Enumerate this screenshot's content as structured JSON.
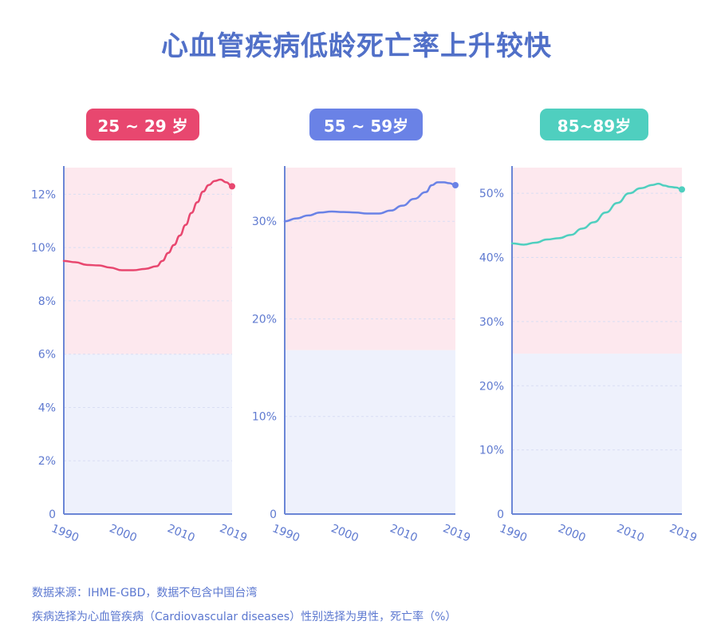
{
  "title": "心血管疾病低龄死亡率上升较快",
  "footer": {
    "line1": "数据来源：IHME-GBD，数据不包含中国台湾",
    "line2": "疾病选择为心血管疾病（Cardiovascular diseases）性别选择为男性，死亡率（%）"
  },
  "colors": {
    "title": "#5170c8",
    "axis": "#6b86d6",
    "highlight_band": "#fde8ee",
    "lower_band": "#eef1fc"
  },
  "chart_data": [
    {
      "type": "line",
      "label": "25 ~ 29 岁",
      "color": "#e8476f",
      "x_ticks": [
        "1990",
        "2000",
        "2010",
        "2019"
      ],
      "y_ticks": [
        "0",
        "2%",
        "4%",
        "6%",
        "8%",
        "10%",
        "12%"
      ],
      "ylim": [
        0,
        13
      ],
      "band_from": 6,
      "series": [
        {
          "x": [
            1990,
            1992,
            1994,
            1996,
            1998,
            2000,
            2002,
            2004,
            2006,
            2007,
            2008,
            2009,
            2010,
            2011,
            2012,
            2013,
            2014,
            2015,
            2016,
            2017,
            2018,
            2019
          ],
          "y": [
            9.5,
            9.45,
            9.35,
            9.33,
            9.25,
            9.15,
            9.15,
            9.2,
            9.3,
            9.5,
            9.8,
            10.1,
            10.45,
            10.85,
            11.3,
            11.7,
            12.1,
            12.35,
            12.5,
            12.55,
            12.45,
            12.3
          ]
        }
      ]
    },
    {
      "type": "line",
      "label": "55 ~ 59岁",
      "color": "#6a82e6",
      "x_ticks": [
        "1990",
        "2000",
        "2010",
        "2019"
      ],
      "y_ticks": [
        "0",
        "10%",
        "20%",
        "30%"
      ],
      "ylim": [
        0,
        35.5
      ],
      "band_from": 16.8,
      "series": [
        {
          "x": [
            1990,
            1992,
            1994,
            1996,
            1998,
            2000,
            2002,
            2004,
            2006,
            2008,
            2010,
            2012,
            2014,
            2015,
            2016,
            2017,
            2018,
            2019
          ],
          "y": [
            30.0,
            30.3,
            30.6,
            30.9,
            31.0,
            30.95,
            30.9,
            30.8,
            30.8,
            31.1,
            31.6,
            32.3,
            33.0,
            33.7,
            34.0,
            34.0,
            33.9,
            33.7
          ]
        }
      ]
    },
    {
      "type": "line",
      "label": "85~89岁",
      "color": "#4fcfbf",
      "x_ticks": [
        "1990",
        "2000",
        "2010",
        "2019"
      ],
      "y_ticks": [
        "0",
        "10%",
        "20%",
        "30%",
        "40%",
        "50%"
      ],
      "ylim": [
        0,
        54
      ],
      "band_from": 25,
      "series": [
        {
          "x": [
            1990,
            1992,
            1994,
            1996,
            1998,
            2000,
            2002,
            2004,
            2006,
            2008,
            2010,
            2012,
            2014,
            2015,
            2016,
            2017,
            2018,
            2019
          ],
          "y": [
            42.2,
            42.0,
            42.3,
            42.8,
            43.0,
            43.5,
            44.5,
            45.5,
            47.0,
            48.5,
            50.0,
            50.8,
            51.3,
            51.5,
            51.2,
            51.0,
            50.9,
            50.6
          ]
        }
      ]
    }
  ]
}
